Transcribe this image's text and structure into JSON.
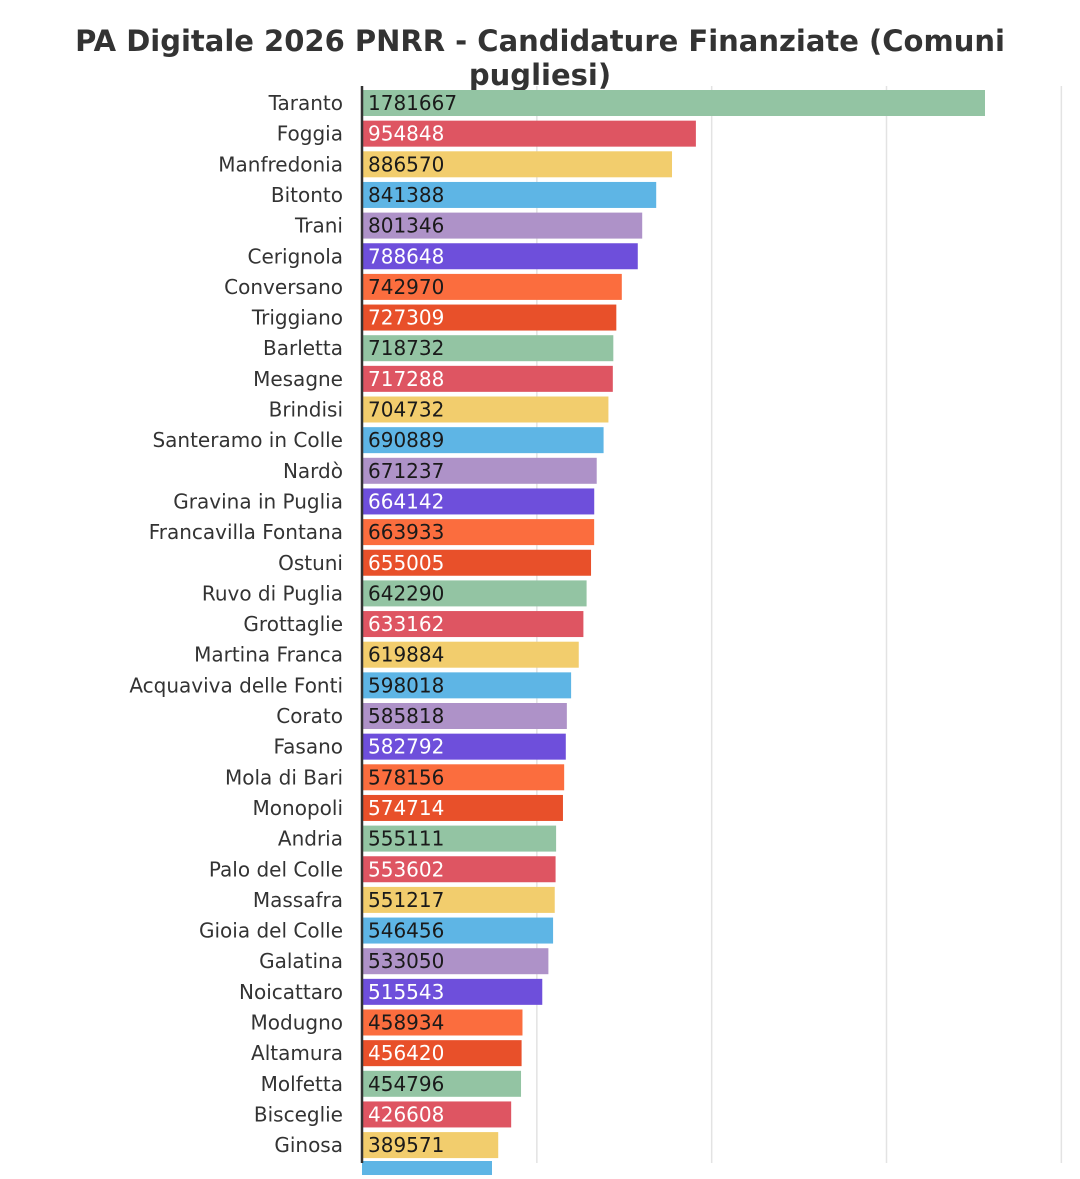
{
  "chart_data": {
    "type": "bar",
    "orientation": "horizontal",
    "title": "PA Digitale 2026 PNRR - Candidature Finanziate (Comuni pugliesi)",
    "xlabel": "",
    "ylabel": "",
    "xlim": [
      0,
      2000000
    ],
    "grid": true,
    "legend": "none",
    "categories": [
      "Taranto",
      "Foggia",
      "Manfredonia",
      "Bitonto",
      "Trani",
      "Cerignola",
      "Conversano",
      "Triggiano",
      "Barletta",
      "Mesagne",
      "Brindisi",
      "Santeramo in Colle",
      "Nardò",
      "Gravina in Puglia",
      "Francavilla Fontana",
      "Ostuni",
      "Ruvo di Puglia",
      "Grottaglie",
      "Martina Franca",
      "Acquaviva delle Fonti",
      "Corato",
      "Fasano",
      "Mola di Bari",
      "Monopoli",
      "Andria",
      "Palo del Colle",
      "Massafra",
      "Gioia del Colle",
      "Galatina",
      "Noicattaro",
      "Modugno",
      "Altamura",
      "Molfetta",
      "Bisceglie",
      "Ginosa"
    ],
    "values": [
      1781667,
      954848,
      886570,
      841388,
      801346,
      788648,
      742970,
      727309,
      718732,
      717288,
      704732,
      690889,
      671237,
      664142,
      663933,
      655005,
      642290,
      633162,
      619884,
      598018,
      585818,
      582792,
      578156,
      574714,
      555111,
      553602,
      551217,
      546456,
      533050,
      515543,
      458934,
      456420,
      454796,
      426608,
      389571
    ],
    "value_labels": [
      "1781667",
      "954848",
      "886570",
      "841388",
      "801346",
      "788648",
      "742970",
      "727309",
      "718732",
      "717288",
      "704732",
      "690889",
      "671237",
      "664142",
      "663933",
      "655005",
      "642290",
      "633162",
      "619884",
      "598018",
      "585818",
      "582792",
      "578156",
      "574714",
      "555111",
      "553602",
      "551217",
      "546456",
      "533050",
      "515543",
      "458934",
      "456420",
      "454796",
      "426608",
      "389571"
    ],
    "palette": [
      "#93c4a3",
      "#de5562",
      "#f2cd6d",
      "#5eb5e5",
      "#ae92c8",
      "#6e4fdb",
      "#fb6d3e",
      "#e8502a"
    ],
    "label_colors": [
      "#1a1a1a",
      "#ffffff",
      "#1a1a1a",
      "#1a1a1a",
      "#1a1a1a",
      "#ffffff",
      "#1a1a1a",
      "#ffffff"
    ],
    "partial_bar_color": "#5eb5e5"
  }
}
